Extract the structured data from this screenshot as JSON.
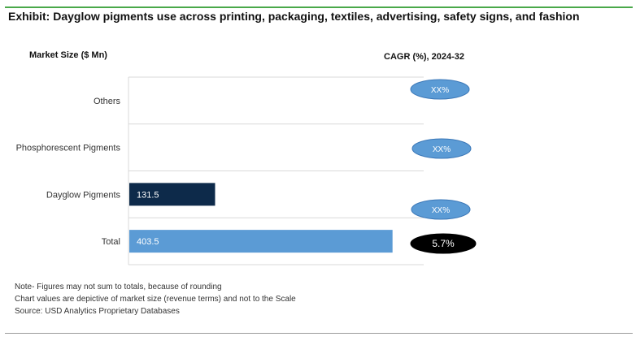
{
  "title": "Exhibit: Dayglow pigments use across printing, packaging, textiles, advertising, safety signs, and fashion",
  "y_axis_title": "Market Size ($ Mn)",
  "cagr_title": "CAGR (%), 2024-32",
  "chart_data": {
    "type": "bar",
    "orientation": "horizontal",
    "categories": [
      "Others",
      "Phosphorescent Pigments",
      "Dayglow Pigments",
      "Total"
    ],
    "values": [
      null,
      null,
      131.5,
      403.5
    ],
    "value_labels": [
      "",
      "",
      "131.5",
      "403.5"
    ],
    "cagr_labels": [
      "XX%",
      "XX%",
      "XX%",
      "5.7%"
    ],
    "xlim": [
      0,
      450
    ],
    "grid": true,
    "colors": {
      "Dayglow Pigments": "#0d2a4a",
      "Total": "#5b9bd5",
      "cagr_placeholder": "#5b9bd5",
      "cagr_actual": "#000000"
    }
  },
  "notes": [
    "Note- Figures may not sum to totals, because of rounding",
    "Chart values are depictive of market size (revenue terms) and not to the Scale",
    "Source: USD Analytics Proprietary Databases"
  ]
}
